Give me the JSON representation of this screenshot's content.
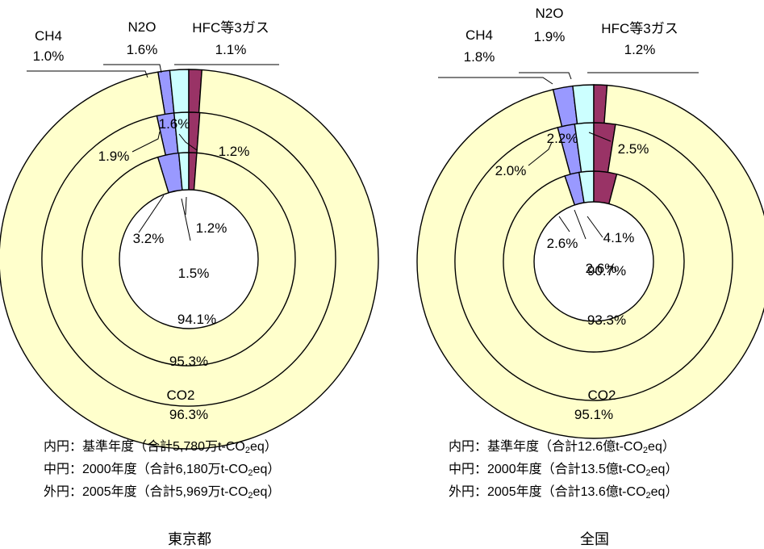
{
  "chart_data": [
    {
      "type": "pie",
      "region": "東京都",
      "categories": [
        "CO2",
        "CH4",
        "N2O",
        "HFC等3ガス"
      ],
      "rings": [
        {
          "position": "inner",
          "label": "基準年度",
          "total": "合計5,780万t-CO2eq",
          "values": [
            94.1,
            3.2,
            1.5,
            1.2
          ]
        },
        {
          "position": "middle",
          "label": "2000年度",
          "total": "合計6,180万t-CO2eq",
          "values": [
            95.3,
            1.9,
            1.6,
            1.2
          ]
        },
        {
          "position": "outer",
          "label": "2005年度",
          "total": "合計5,969万t-CO2eq",
          "values": [
            96.3,
            1.0,
            1.6,
            1.1
          ]
        }
      ]
    },
    {
      "type": "pie",
      "region": "全国",
      "categories": [
        "CO2",
        "CH4",
        "N2O",
        "HFC等3ガス"
      ],
      "rings": [
        {
          "position": "inner",
          "label": "基準年度",
          "total": "合計12.6億t-CO2eq",
          "values": [
            90.7,
            2.6,
            2.6,
            4.1
          ]
        },
        {
          "position": "middle",
          "label": "2000年度",
          "total": "合計13.5億t-CO2eq",
          "values": [
            93.3,
            2.0,
            2.2,
            2.5
          ]
        },
        {
          "position": "outer",
          "label": "2005年度",
          "total": "合計13.6億t-CO2eq",
          "values": [
            95.1,
            1.8,
            1.9,
            1.2
          ]
        }
      ]
    }
  ],
  "colors": {
    "CO2": "#FFFFCC",
    "CH4": "#9999FF",
    "N2O": "#CCFFFF",
    "HFC": "#993366",
    "center": "#FFFFFF",
    "stroke": "#000000"
  },
  "captions": {
    "tokyo": {
      "inner": {
        "prefix": "内円：基準年度（合計5,780万t-CO",
        "sub": "2",
        "suffix": "eq）"
      },
      "middle": {
        "prefix": "中円：2000年度（合計6,180万t-CO",
        "sub": "2",
        "suffix": "eq）"
      },
      "outer": {
        "prefix": "外円：2005年度（合計5,969万t-CO",
        "sub": "2",
        "suffix": "eq）"
      },
      "title": "東京都"
    },
    "japan": {
      "inner": {
        "prefix": "内円：基準年度（合計12.6億t-CO",
        "sub": "2",
        "suffix": "eq）"
      },
      "middle": {
        "prefix": "中円：2000年度（合計13.5億t-CO",
        "sub": "2",
        "suffix": "eq）"
      },
      "outer": {
        "prefix": "外円：2005年度（合計13.6億t-CO",
        "sub": "2",
        "suffix": "eq）"
      },
      "title": "全国"
    }
  }
}
